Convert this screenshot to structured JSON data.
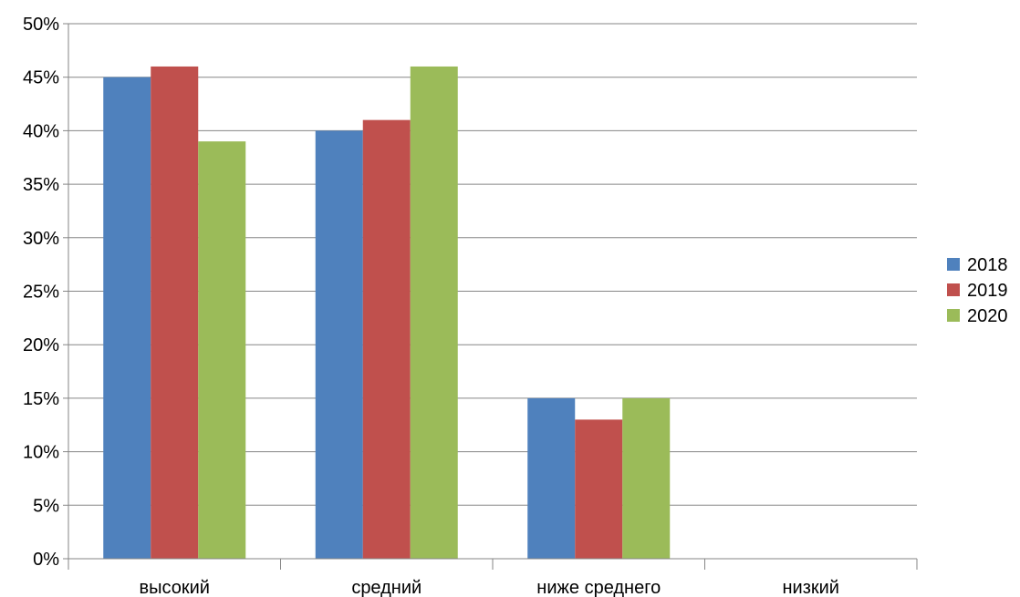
{
  "chart_data": {
    "type": "bar",
    "categories": [
      "высокий",
      "средний",
      "ниже среднего",
      "низкий"
    ],
    "series": [
      {
        "name": "2018",
        "color": "#4F81BD",
        "values": [
          45,
          40,
          15,
          0
        ]
      },
      {
        "name": "2019",
        "color": "#C0504D",
        "values": [
          46,
          41,
          13,
          0
        ]
      },
      {
        "name": "2020",
        "color": "#9BBB59",
        "values": [
          39,
          46,
          15,
          0
        ]
      }
    ],
    "ylim": [
      0,
      50
    ],
    "yticks": [
      0,
      5,
      10,
      15,
      20,
      25,
      30,
      35,
      40,
      45,
      50
    ],
    "ytick_labels": [
      "0%",
      "5%",
      "10%",
      "15%",
      "20%",
      "25%",
      "30%",
      "35%",
      "40%",
      "45%",
      "50%"
    ],
    "grid": true,
    "legend_position": "right"
  }
}
